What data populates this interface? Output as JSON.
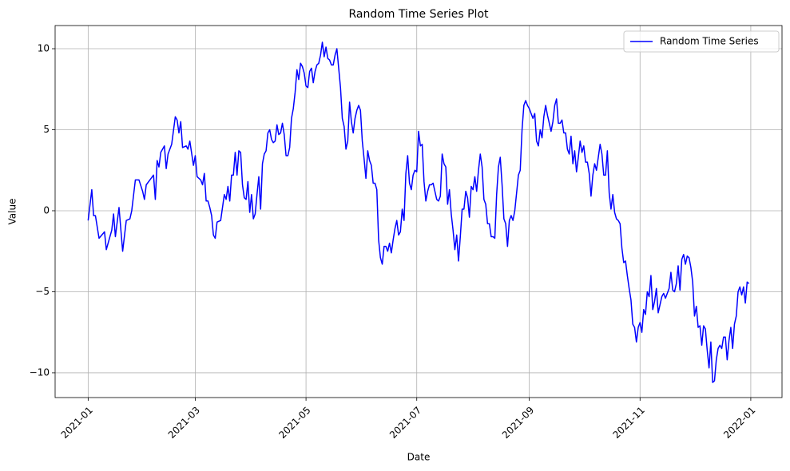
{
  "chart_data": {
    "type": "line",
    "title": "Random Time Series Plot",
    "x_label": "Date",
    "y_label": "Value",
    "x": [
      0,
      2,
      3,
      4,
      6,
      9,
      10,
      13,
      14,
      15,
      17,
      19,
      21,
      23,
      24,
      26,
      28,
      30,
      31,
      32,
      34,
      36,
      37,
      38,
      39,
      40,
      42,
      43,
      44,
      46,
      48,
      49,
      50,
      51,
      52,
      54,
      55,
      56,
      58,
      59,
      60,
      62,
      63,
      64,
      65,
      66,
      67,
      68,
      69,
      70,
      71,
      73,
      75,
      76,
      77,
      78,
      79,
      80,
      81,
      82,
      83,
      84,
      85,
      86,
      87,
      88,
      89,
      90,
      91,
      92,
      93,
      94,
      95,
      96,
      97,
      98,
      99,
      100,
      101,
      102,
      103,
      104,
      105,
      106,
      107,
      108,
      109,
      110,
      111,
      112,
      113,
      114,
      115,
      116,
      117,
      118,
      119,
      120,
      121,
      122,
      123,
      124,
      125,
      126,
      127,
      128,
      129,
      130,
      131,
      132,
      133,
      134,
      135,
      136,
      137,
      138,
      139,
      140,
      141,
      142,
      143,
      144,
      145,
      146,
      147,
      148,
      149,
      150,
      151,
      152,
      153,
      154,
      155,
      156,
      157,
      158,
      159,
      160,
      161,
      162,
      163,
      164,
      165,
      166,
      167,
      168,
      169,
      170,
      171,
      172,
      173,
      174,
      175,
      176,
      177,
      178,
      179,
      180,
      181,
      182,
      183,
      184,
      185,
      186,
      187,
      188,
      189,
      190,
      191,
      192,
      193,
      194,
      195,
      196,
      197,
      198,
      199,
      200,
      201,
      202,
      203,
      204,
      205,
      206,
      207,
      208,
      209,
      210,
      211,
      212,
      213,
      214,
      215,
      216,
      217,
      218,
      219,
      220,
      221,
      222,
      223,
      224,
      225,
      226,
      227,
      228,
      229,
      230,
      231,
      232,
      233,
      234,
      235,
      236,
      237,
      238,
      239,
      240,
      241,
      242,
      243,
      244,
      245,
      246,
      247,
      248,
      249,
      250,
      251,
      252,
      253,
      254,
      255,
      256,
      257,
      258,
      259,
      260,
      261,
      262,
      263,
      264,
      265,
      266,
      267,
      268,
      269,
      270,
      271,
      272,
      273,
      274,
      275,
      276,
      277,
      278,
      279,
      280,
      281,
      282,
      283,
      284,
      285,
      286,
      287,
      288,
      289,
      290,
      291,
      292,
      293,
      294,
      295,
      296,
      297,
      298,
      299,
      300,
      301,
      302,
      303,
      304,
      305,
      306,
      307,
      308,
      309,
      310,
      311,
      312,
      313,
      314,
      315,
      316,
      317,
      318,
      319,
      320,
      321,
      322,
      323,
      324,
      325,
      326,
      327,
      328,
      329,
      330,
      331,
      332,
      333,
      334,
      335,
      336,
      337,
      338,
      339,
      340,
      341,
      342,
      343,
      344,
      345,
      346,
      347,
      348,
      349,
      350,
      351,
      352,
      353,
      354,
      355,
      356,
      357,
      358,
      359,
      360,
      361,
      362,
      363,
      364
    ],
    "series": [
      {
        "name": "Random Time Series",
        "color": "#0000ff",
        "values": [
          -0.6,
          1.3,
          -0.3,
          -0.3,
          -1.7,
          -1.3,
          -2.4,
          -1.2,
          -0.2,
          -1.6,
          0.2,
          -2.5,
          -0.6,
          -0.5,
          0,
          1.9,
          1.9,
          1.2,
          0.7,
          1.6,
          1.9,
          2.2,
          0.7,
          3.1,
          2.7,
          3.6,
          4.0,
          2.6,
          3.5,
          4.1,
          5.8,
          5.6,
          4.8,
          5.5,
          3.9,
          4.0,
          3.8,
          4.3,
          2.8,
          3.4,
          2.1,
          1.9,
          1.6,
          2.3,
          0.6,
          0.6,
          0.2,
          -0.3,
          -1.5,
          -1.7,
          -0.7,
          -0.6,
          1.0,
          0.7,
          1.5,
          0.6,
          2.2,
          2.2,
          3.6,
          2.2,
          3.7,
          3.6,
          1.6,
          0.8,
          0.7,
          1.8,
          -0.1,
          1.0,
          -0.5,
          -0.2,
          1.0,
          2.1,
          0.1,
          2.9,
          3.5,
          3.7,
          4.8,
          5.0,
          4.4,
          4.2,
          4.3,
          5.3,
          4.7,
          4.8,
          5.4,
          4.7,
          3.4,
          3.4,
          3.9,
          5.7,
          6.3,
          7.3,
          8.7,
          8.1,
          9.1,
          8.9,
          8.5,
          7.7,
          7.6,
          8.6,
          8.8,
          7.9,
          8.6,
          9.0,
          9.1,
          9.6,
          10.4,
          9.5,
          10.1,
          9.4,
          9.3,
          9.0,
          9.0,
          9.6,
          10.0,
          8.8,
          7.6,
          5.7,
          5.2,
          3.8,
          4.3,
          6.7,
          5.5,
          4.8,
          5.7,
          6.2,
          6.5,
          6.2,
          4.3,
          3.2,
          2.0,
          3.7,
          3.1,
          2.8,
          1.7,
          1.7,
          1.3,
          -1.8,
          -2.9,
          -3.3,
          -2.2,
          -2.2,
          -2.5,
          -2.0,
          -2.6,
          -1.8,
          -1.1,
          -0.6,
          -1.5,
          -1.3,
          0.1,
          -0.6,
          2.3,
          3.4,
          1.7,
          1.3,
          2.2,
          2.5,
          2.4,
          4.9,
          4.0,
          4.1,
          1.8,
          0.6,
          1.2,
          1.6,
          1.6,
          1.7,
          1.2,
          0.7,
          0.6,
          0.9,
          3.5,
          2.9,
          2.7,
          0.4,
          1.3,
          -0.2,
          -1.2,
          -2.4,
          -1.5,
          -3.1,
          -1.6,
          0.1,
          0.1,
          1.2,
          0.8,
          -0.4,
          1.5,
          1.3,
          2.1,
          1.2,
          2.5,
          3.5,
          2.7,
          0.7,
          0.4,
          -0.8,
          -0.8,
          -1.6,
          -1.6,
          -1.7,
          1.0,
          2.7,
          3.3,
          1.6,
          -0.5,
          -0.8,
          -2.2,
          -0.6,
          -0.3,
          -0.6,
          0.0,
          1.1,
          2.2,
          2.5,
          5.0,
          6.5,
          6.8,
          6.5,
          6.3,
          6.0,
          5.7,
          6.0,
          4.3,
          4.0,
          5.0,
          4.5,
          5.8,
          6.5,
          5.9,
          5.4,
          4.9,
          5.5,
          6.5,
          6.9,
          5.4,
          5.4,
          5.6,
          4.8,
          4.8,
          3.8,
          3.5,
          4.6,
          2.9,
          3.7,
          2.4,
          3.3,
          4.3,
          3.6,
          4.0,
          3.0,
          3.0,
          2.3,
          0.9,
          2.2,
          2.9,
          2.5,
          3.3,
          4.1,
          3.5,
          2.2,
          2.2,
          3.7,
          1.1,
          0.1,
          1.0,
          -0.1,
          -0.5,
          -0.6,
          -0.8,
          -2.3,
          -3.2,
          -3.1,
          -4.0,
          -4.8,
          -5.5,
          -7.0,
          -7.2,
          -8.1,
          -7.2,
          -6.9,
          -7.5,
          -6.1,
          -6.4,
          -5.0,
          -5.3,
          -4.0,
          -6.1,
          -5.6,
          -4.8,
          -6.3,
          -5.8,
          -5.3,
          -5.1,
          -5.4,
          -5.1,
          -4.8,
          -3.8,
          -4.9,
          -5.0,
          -4.5,
          -3.4,
          -4.9,
          -3.0,
          -2.7,
          -3.3,
          -2.8,
          -2.9,
          -3.5,
          -4.4,
          -6.5,
          -5.9,
          -7.2,
          -7.1,
          -8.3,
          -7.1,
          -7.3,
          -8.6,
          -9.7,
          -8.1,
          -10.6,
          -10.5,
          -9.2,
          -8.5,
          -8.3,
          -8.5,
          -7.8,
          -7.8,
          -9.2,
          -8.0,
          -7.2,
          -8.5,
          -7.0,
          -6.5,
          -5.0,
          -4.7,
          -5.2,
          -4.7,
          -5.7,
          -4.4,
          -4.5
        ]
      }
    ],
    "xlim": [
      -18.2,
      382.2
    ],
    "xticks": [
      {
        "value": 0,
        "label": "2021-01"
      },
      {
        "value": 59,
        "label": "2021-03"
      },
      {
        "value": 120,
        "label": "2021-05"
      },
      {
        "value": 181,
        "label": "2021-07"
      },
      {
        "value": 243,
        "label": "2021-09"
      },
      {
        "value": 304,
        "label": "2021-11"
      },
      {
        "value": 365,
        "label": "2022-01"
      }
    ],
    "ylim": [
      -11.53,
      11.43
    ],
    "yticks": [
      {
        "value": -10,
        "label": "−10"
      },
      {
        "value": -5,
        "label": "−5"
      },
      0,
      5,
      10
    ],
    "grid": true,
    "legend": "upper right"
  }
}
